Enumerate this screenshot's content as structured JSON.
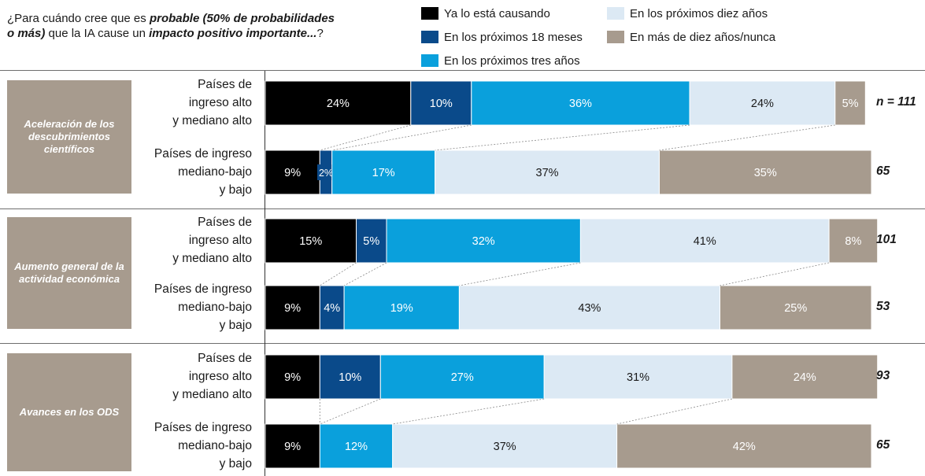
{
  "question": {
    "p1": "¿Para cuándo cree que es ",
    "b1": "probable (50% de probabilidades o más)",
    "p2": " que la IA cause un ",
    "b2": "impacto positivo importante...",
    "p3": "?"
  },
  "colors": {
    "ya": "#000000",
    "m18": "#0a4a8a",
    "a3": "#0aa0dc",
    "a10": "#dce9f4",
    "nunca": "#a79b8e"
  },
  "chart_data": {
    "type": "bar",
    "orientation": "horizontal",
    "stacked": true,
    "xlim": [
      0,
      100
    ],
    "legend": [
      "Ya lo está causando",
      "En los próximos 18 meses",
      "En los próximos tres años",
      "En los próximos diez años",
      "En más de diez años/nunca"
    ],
    "categories": [
      {
        "name": "Aceleración de los descubrimientos científicos",
        "groups": [
          {
            "label": [
              "Países de",
              "ingreso alto",
              "y mediano alto"
            ],
            "values": [
              24,
              10,
              36,
              24,
              5
            ],
            "n": "n = 111"
          },
          {
            "label": [
              "Países de ingreso",
              "mediano-bajo",
              "y bajo"
            ],
            "values": [
              9,
              2,
              17,
              37,
              35
            ],
            "n": "65"
          }
        ]
      },
      {
        "name": "Aumento general de la actividad económica",
        "groups": [
          {
            "label": [
              "Países de",
              "ingreso alto",
              "y mediano alto"
            ],
            "values": [
              15,
              5,
              32,
              41,
              8
            ],
            "n": "101"
          },
          {
            "label": [
              "Países de ingreso",
              "mediano-bajo",
              "y bajo"
            ],
            "values": [
              9,
              4,
              19,
              43,
              25
            ],
            "n": "53"
          }
        ]
      },
      {
        "name": "Avances en los ODS",
        "groups": [
          {
            "label": [
              "Países de",
              "ingreso alto",
              "y mediano alto"
            ],
            "values": [
              9,
              10,
              27,
              31,
              24
            ],
            "n": "93"
          },
          {
            "label": [
              "Países de ingreso",
              "mediano-bajo",
              "y bajo"
            ],
            "values": [
              9,
              0,
              12,
              37,
              42
            ],
            "n": "65"
          }
        ]
      }
    ]
  }
}
